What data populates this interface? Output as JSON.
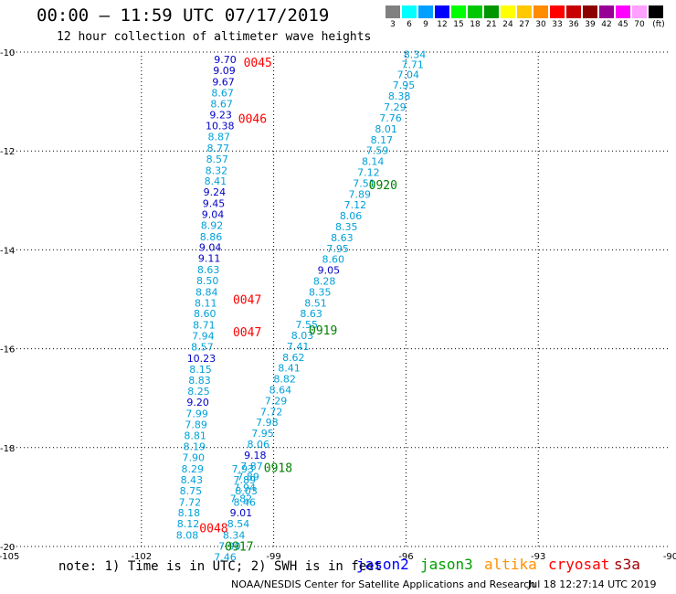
{
  "header": {
    "title": "00:00 – 11:59 UTC 07/17/2019",
    "subtitle": "12 hour collection of altimeter wave heights"
  },
  "colorbar": {
    "unit": "(ft)",
    "items": [
      {
        "label": "3",
        "color": "#808080"
      },
      {
        "label": "6",
        "color": "#00ffff"
      },
      {
        "label": "9",
        "color": "#00a0ff"
      },
      {
        "label": "12",
        "color": "#0000ff"
      },
      {
        "label": "15",
        "color": "#00ff00"
      },
      {
        "label": "18",
        "color": "#00c800"
      },
      {
        "label": "21",
        "color": "#009600"
      },
      {
        "label": "24",
        "color": "#ffff00"
      },
      {
        "label": "27",
        "color": "#ffc800"
      },
      {
        "label": "30",
        "color": "#ff8c00"
      },
      {
        "label": "33",
        "color": "#ff0000"
      },
      {
        "label": "36",
        "color": "#c80000"
      },
      {
        "label": "39",
        "color": "#8c0000"
      },
      {
        "label": "42",
        "color": "#960096"
      },
      {
        "label": "45",
        "color": "#ff00ff"
      },
      {
        "label": "70",
        "color": "#ffa0ff"
      },
      {
        "label": "",
        "color": "#000000"
      }
    ]
  },
  "colors": {
    "cyan_text": "#00a0d8",
    "blue_text": "#0000c8",
    "time_red": "#ff0000",
    "time_green": "#008000"
  },
  "note": "note: 1) Time is in UTC; 2) SWH is in feet",
  "legend": [
    {
      "label": "jason2",
      "color": "#0000ff"
    },
    {
      "label": "jason3",
      "color": "#00a000"
    },
    {
      "label": "altika",
      "color": "#ff9000"
    },
    {
      "label": "cryosat",
      "color": "#ff0000"
    },
    {
      "label": "s3a",
      "color": "#a00000"
    }
  ],
  "footer": {
    "credit": "NOAA/NESDIS Center for Satellite Applications and Research",
    "timestamp": "Jul 18 12:27:14 UTC 2019"
  },
  "chart_data": {
    "type": "scatter",
    "title": "00:00 – 11:59 UTC 07/17/2019",
    "xlim": [
      -105,
      -90
    ],
    "ylim": [
      -20,
      -10
    ],
    "x_ticks": [
      "-105",
      "-102",
      "-99",
      "-96",
      "-93",
      "-90"
    ],
    "y_ticks": [
      "-10",
      "-12",
      "-14",
      "-16",
      "-18",
      "-20"
    ],
    "grid": true,
    "track_left_values": [
      {
        "lon": -100.1,
        "lat": -10.15,
        "v": "9.70",
        "c": "blue"
      },
      {
        "lon": -100.12,
        "lat": -10.37,
        "v": "9.09",
        "c": "blue"
      },
      {
        "lon": -100.14,
        "lat": -10.6,
        "v": "9.67",
        "c": "blue"
      },
      {
        "lon": -100.16,
        "lat": -10.82,
        "v": "8.67",
        "c": "cyan"
      },
      {
        "lon": -100.18,
        "lat": -11.04,
        "v": "8.67",
        "c": "cyan"
      },
      {
        "lon": -100.2,
        "lat": -11.27,
        "v": "9.23",
        "c": "blue"
      },
      {
        "lon": -100.22,
        "lat": -11.49,
        "v": "10.38",
        "c": "blue"
      },
      {
        "lon": -100.24,
        "lat": -11.71,
        "v": "8.87",
        "c": "cyan"
      },
      {
        "lon": -100.26,
        "lat": -11.94,
        "v": "8.77",
        "c": "cyan"
      },
      {
        "lon": -100.28,
        "lat": -12.16,
        "v": "8.57",
        "c": "cyan"
      },
      {
        "lon": -100.3,
        "lat": -12.39,
        "v": "8.32",
        "c": "cyan"
      },
      {
        "lon": -100.32,
        "lat": -12.61,
        "v": "8.41",
        "c": "cyan"
      },
      {
        "lon": -100.34,
        "lat": -12.83,
        "v": "9.24",
        "c": "blue"
      },
      {
        "lon": -100.36,
        "lat": -13.06,
        "v": "9.45",
        "c": "blue"
      },
      {
        "lon": -100.38,
        "lat": -13.28,
        "v": "9.04",
        "c": "blue"
      },
      {
        "lon": -100.4,
        "lat": -13.5,
        "v": "8.92",
        "c": "cyan"
      },
      {
        "lon": -100.42,
        "lat": -13.73,
        "v": "8.86",
        "c": "cyan"
      },
      {
        "lon": -100.44,
        "lat": -13.95,
        "v": "9.04",
        "c": "blue"
      },
      {
        "lon": -100.46,
        "lat": -14.17,
        "v": "9.11",
        "c": "blue"
      },
      {
        "lon": -100.48,
        "lat": -14.4,
        "v": "8.63",
        "c": "cyan"
      },
      {
        "lon": -100.5,
        "lat": -14.62,
        "v": "8.50",
        "c": "cyan"
      },
      {
        "lon": -100.52,
        "lat": -14.85,
        "v": "8.84",
        "c": "cyan"
      },
      {
        "lon": -100.54,
        "lat": -15.07,
        "v": "8.11",
        "c": "cyan"
      },
      {
        "lon": -100.56,
        "lat": -15.29,
        "v": "8.60",
        "c": "cyan"
      },
      {
        "lon": -100.58,
        "lat": -15.52,
        "v": "8.71",
        "c": "cyan"
      },
      {
        "lon": -100.6,
        "lat": -15.74,
        "v": "7.94",
        "c": "cyan"
      },
      {
        "lon": -100.62,
        "lat": -15.96,
        "v": "8.57",
        "c": "cyan"
      },
      {
        "lon": -100.64,
        "lat": -16.19,
        "v": "10.23",
        "c": "blue"
      },
      {
        "lon": -100.66,
        "lat": -16.41,
        "v": "8.15",
        "c": "cyan"
      },
      {
        "lon": -100.68,
        "lat": -16.64,
        "v": "8.83",
        "c": "cyan"
      },
      {
        "lon": -100.7,
        "lat": -16.86,
        "v": "8.25",
        "c": "cyan"
      },
      {
        "lon": -100.72,
        "lat": -17.08,
        "v": "9.20",
        "c": "blue"
      },
      {
        "lon": -100.74,
        "lat": -17.31,
        "v": "7.99",
        "c": "cyan"
      },
      {
        "lon": -100.76,
        "lat": -17.53,
        "v": "7.89",
        "c": "cyan"
      },
      {
        "lon": -100.78,
        "lat": -17.75,
        "v": "8.81",
        "c": "cyan"
      },
      {
        "lon": -100.8,
        "lat": -17.98,
        "v": "8.19",
        "c": "cyan"
      },
      {
        "lon": -100.82,
        "lat": -18.2,
        "v": "7.90",
        "c": "cyan"
      },
      {
        "lon": -100.84,
        "lat": -18.43,
        "v": "8.29",
        "c": "cyan"
      },
      {
        "lon": -100.86,
        "lat": -18.65,
        "v": "8.43",
        "c": "cyan"
      },
      {
        "lon": -100.88,
        "lat": -18.87,
        "v": "8.75",
        "c": "cyan"
      },
      {
        "lon": -100.9,
        "lat": -19.1,
        "v": "7.72",
        "c": "cyan"
      },
      {
        "lon": -100.92,
        "lat": -19.32,
        "v": "8.18",
        "c": "cyan"
      },
      {
        "lon": -100.94,
        "lat": -19.54,
        "v": "8.12",
        "c": "cyan"
      },
      {
        "lon": -100.96,
        "lat": -19.77,
        "v": "8.08",
        "c": "cyan"
      }
    ],
    "track_left2_values": [
      {
        "lon": -99.7,
        "lat": -18.43,
        "v": "7.93",
        "c": "cyan"
      },
      {
        "lon": -99.66,
        "lat": -18.65,
        "v": "7.89",
        "c": "cyan"
      },
      {
        "lon": -99.62,
        "lat": -18.87,
        "v": "8.03",
        "c": "cyan"
      },
      {
        "lon": -99.66,
        "lat": -19.1,
        "v": "8.46",
        "c": "cyan"
      },
      {
        "lon": -99.74,
        "lat": -19.32,
        "v": "9.01",
        "c": "blue"
      },
      {
        "lon": -99.8,
        "lat": -19.54,
        "v": "8.54",
        "c": "cyan"
      },
      {
        "lon": -99.9,
        "lat": -19.77,
        "v": "8.34",
        "c": "cyan"
      },
      {
        "lon": -100.0,
        "lat": -19.99,
        "v": "7.90",
        "c": "cyan"
      },
      {
        "lon": -100.1,
        "lat": -20.21,
        "v": "7.46",
        "c": "cyan"
      }
    ],
    "track_right_values": [
      {
        "lon": -95.8,
        "lat": -10.05,
        "v": "8.34",
        "c": "cyan"
      },
      {
        "lon": -95.85,
        "lat": -10.25,
        "v": "7.71",
        "c": "cyan"
      },
      {
        "lon": -95.95,
        "lat": -10.45,
        "v": "7.04",
        "c": "cyan"
      },
      {
        "lon": -96.05,
        "lat": -10.67,
        "v": "7.95",
        "c": "cyan"
      },
      {
        "lon": -96.15,
        "lat": -10.89,
        "v": "8.38",
        "c": "cyan"
      },
      {
        "lon": -96.25,
        "lat": -11.11,
        "v": "7.29",
        "c": "cyan"
      },
      {
        "lon": -96.35,
        "lat": -11.33,
        "v": "7.76",
        "c": "cyan"
      },
      {
        "lon": -96.45,
        "lat": -11.55,
        "v": "8.01",
        "c": "cyan"
      },
      {
        "lon": -96.55,
        "lat": -11.77,
        "v": "8.17",
        "c": "cyan"
      },
      {
        "lon": -96.65,
        "lat": -11.99,
        "v": "7.59",
        "c": "cyan"
      },
      {
        "lon": -96.75,
        "lat": -12.21,
        "v": "8.14",
        "c": "cyan"
      },
      {
        "lon": -96.85,
        "lat": -12.43,
        "v": "7.12",
        "c": "cyan"
      },
      {
        "lon": -96.95,
        "lat": -12.65,
        "v": "7.51",
        "c": "cyan"
      },
      {
        "lon": -97.05,
        "lat": -12.87,
        "v": "7.89",
        "c": "cyan"
      },
      {
        "lon": -97.15,
        "lat": -13.09,
        "v": "7.12",
        "c": "cyan"
      },
      {
        "lon": -97.25,
        "lat": -13.31,
        "v": "8.06",
        "c": "cyan"
      },
      {
        "lon": -97.35,
        "lat": -13.53,
        "v": "8.35",
        "c": "cyan"
      },
      {
        "lon": -97.45,
        "lat": -13.75,
        "v": "8.63",
        "c": "cyan"
      },
      {
        "lon": -97.55,
        "lat": -13.97,
        "v": "7.95",
        "c": "cyan"
      },
      {
        "lon": -97.65,
        "lat": -14.19,
        "v": "8.60",
        "c": "cyan"
      },
      {
        "lon": -97.75,
        "lat": -14.41,
        "v": "9.05",
        "c": "blue"
      },
      {
        "lon": -97.85,
        "lat": -14.63,
        "v": "8.28",
        "c": "cyan"
      },
      {
        "lon": -97.95,
        "lat": -14.85,
        "v": "8.35",
        "c": "cyan"
      },
      {
        "lon": -98.05,
        "lat": -15.07,
        "v": "8.51",
        "c": "cyan"
      },
      {
        "lon": -98.15,
        "lat": -15.29,
        "v": "8.63",
        "c": "cyan"
      },
      {
        "lon": -98.25,
        "lat": -15.51,
        "v": "7.55",
        "c": "cyan"
      },
      {
        "lon": -98.35,
        "lat": -15.73,
        "v": "8.03",
        "c": "cyan"
      },
      {
        "lon": -98.45,
        "lat": -15.95,
        "v": "7.41",
        "c": "cyan"
      },
      {
        "lon": -98.55,
        "lat": -16.17,
        "v": "8.62",
        "c": "cyan"
      },
      {
        "lon": -98.65,
        "lat": -16.39,
        "v": "8.41",
        "c": "cyan"
      },
      {
        "lon": -98.75,
        "lat": -16.61,
        "v": "8.82",
        "c": "cyan"
      },
      {
        "lon": -98.85,
        "lat": -16.83,
        "v": "8.64",
        "c": "cyan"
      },
      {
        "lon": -98.95,
        "lat": -17.05,
        "v": "7.29",
        "c": "cyan"
      },
      {
        "lon": -99.05,
        "lat": -17.27,
        "v": "7.72",
        "c": "cyan"
      },
      {
        "lon": -99.15,
        "lat": -17.49,
        "v": "7.98",
        "c": "cyan"
      },
      {
        "lon": -99.25,
        "lat": -17.71,
        "v": "7.95",
        "c": "cyan"
      },
      {
        "lon": -99.35,
        "lat": -17.93,
        "v": "8.06",
        "c": "cyan"
      },
      {
        "lon": -99.42,
        "lat": -18.15,
        "v": "9.18",
        "c": "blue"
      },
      {
        "lon": -99.5,
        "lat": -18.37,
        "v": "7.87",
        "c": "cyan"
      },
      {
        "lon": -99.58,
        "lat": -18.59,
        "v": "7.89",
        "c": "cyan"
      },
      {
        "lon": -99.66,
        "lat": -18.81,
        "v": "7.94",
        "c": "cyan"
      },
      {
        "lon": -99.74,
        "lat": -19.03,
        "v": "7.82",
        "c": "cyan"
      }
    ],
    "time_labels": [
      {
        "lon": -99.36,
        "lat": -10.2,
        "label": "0045",
        "color": "red"
      },
      {
        "lon": -99.48,
        "lat": -11.34,
        "label": "0046",
        "color": "red"
      },
      {
        "lon": -99.6,
        "lat": -15.0,
        "label": "0047",
        "color": "red"
      },
      {
        "lon": -99.6,
        "lat": -15.66,
        "label": "0047",
        "color": "red"
      },
      {
        "lon": -100.36,
        "lat": -19.62,
        "label": "0048",
        "color": "red"
      },
      {
        "lon": -96.52,
        "lat": -12.68,
        "label": "0920",
        "color": "green"
      },
      {
        "lon": -97.88,
        "lat": -15.62,
        "label": "0919",
        "color": "green"
      },
      {
        "lon": -98.9,
        "lat": -18.4,
        "label": "0918",
        "color": "green"
      },
      {
        "lon": -99.78,
        "lat": -19.99,
        "label": "0917",
        "color": "green"
      }
    ]
  }
}
